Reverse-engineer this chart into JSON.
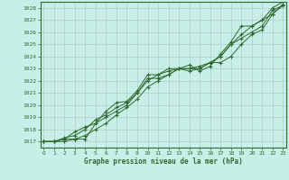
{
  "xlabel": "Graphe pression niveau de la mer (hPa)",
  "ylim": [
    1016.5,
    1028.5
  ],
  "xlim": [
    -0.3,
    23.3
  ],
  "yticks": [
    1017,
    1018,
    1019,
    1020,
    1021,
    1022,
    1023,
    1024,
    1025,
    1026,
    1027,
    1028
  ],
  "xticks": [
    0,
    1,
    2,
    3,
    4,
    5,
    6,
    7,
    8,
    9,
    10,
    11,
    12,
    13,
    14,
    15,
    16,
    17,
    18,
    19,
    20,
    21,
    22,
    23
  ],
  "background_color": "#c8eee8",
  "grid_color": "#b0ccc8",
  "line_color": "#2d6a2d",
  "series": [
    [
      1017.0,
      1017.0,
      1017.2,
      1017.2,
      1017.2,
      1018.5,
      1019.0,
      1019.5,
      1020.0,
      1021.0,
      1022.2,
      1022.2,
      1022.5,
      1023.0,
      1022.8,
      1023.0,
      1023.5,
      1023.5,
      1024.0,
      1025.0,
      1025.8,
      1026.2,
      1027.5,
      1028.2
    ],
    [
      1017.0,
      1017.0,
      1017.3,
      1017.5,
      1018.0,
      1018.8,
      1019.2,
      1019.8,
      1020.2,
      1021.0,
      1022.0,
      1022.5,
      1022.8,
      1023.0,
      1023.0,
      1023.2,
      1023.5,
      1024.0,
      1025.0,
      1025.5,
      1026.0,
      1026.5,
      1027.8,
      1028.2
    ],
    [
      1017.0,
      1017.0,
      1017.2,
      1017.8,
      1018.2,
      1018.5,
      1019.5,
      1020.2,
      1020.3,
      1021.2,
      1022.5,
      1022.5,
      1023.0,
      1023.0,
      1023.3,
      1022.8,
      1023.2,
      1024.2,
      1025.2,
      1026.5,
      1026.5,
      1027.0,
      1027.5,
      1028.3
    ],
    [
      1017.0,
      1017.0,
      1017.0,
      1017.2,
      1017.5,
      1018.0,
      1018.5,
      1019.2,
      1019.8,
      1020.5,
      1021.5,
      1022.0,
      1022.5,
      1023.0,
      1023.0,
      1023.0,
      1023.5,
      1024.0,
      1025.0,
      1025.8,
      1026.5,
      1027.0,
      1028.0,
      1028.5
    ]
  ]
}
